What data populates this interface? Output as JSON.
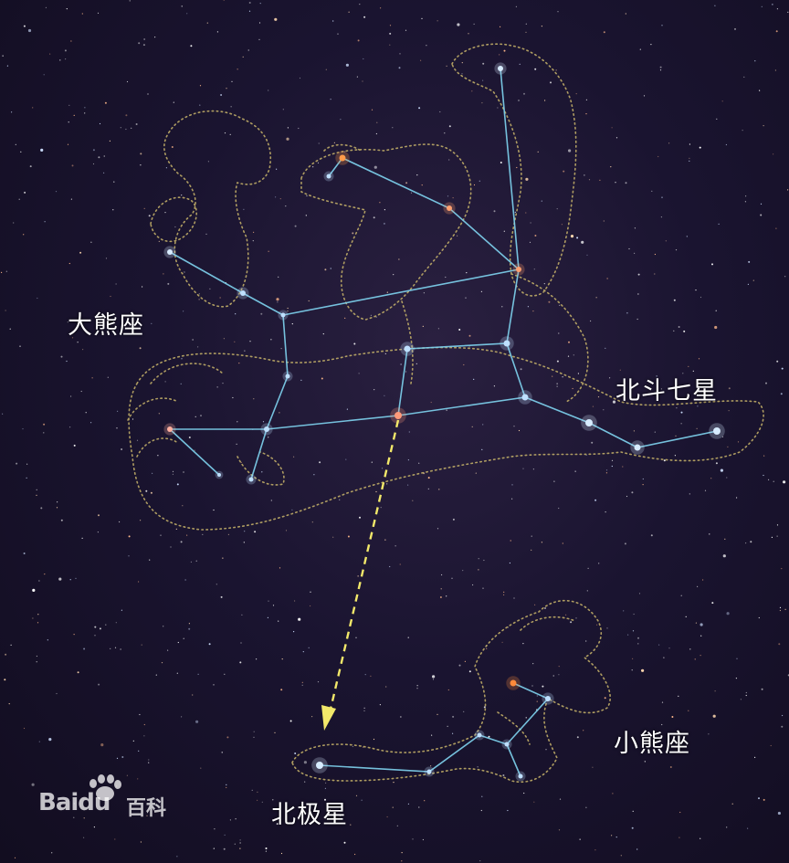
{
  "labels": {
    "ursa_major": "大熊座",
    "big_dipper": "北斗七星",
    "polaris": "北极星",
    "ursa_minor": "小熊座"
  },
  "watermark": {
    "brand": "Baidu",
    "brand_suffix": "百科"
  },
  "colors": {
    "sky": "#140f22",
    "constellation_line": "#7fd4f0",
    "figure_outline": "#c9b56a",
    "pointer_arrow": "#f2e86a",
    "label_text": "#ffffff"
  }
}
